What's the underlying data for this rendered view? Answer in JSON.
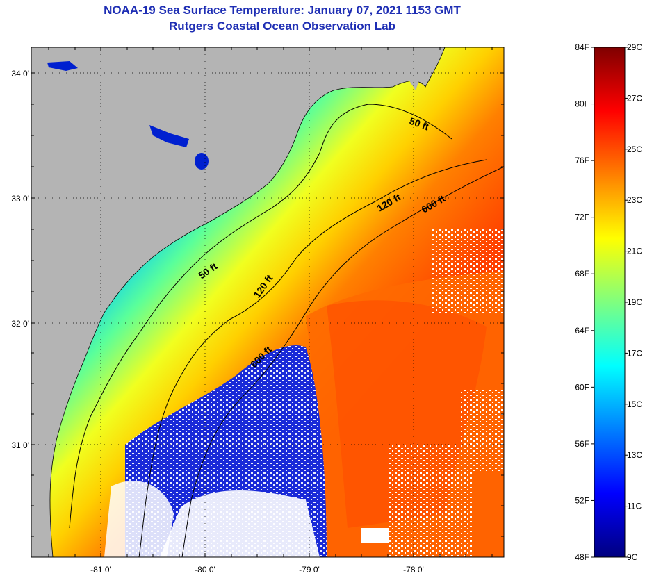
{
  "title_line1": "NOAA-19 Sea Surface Temperature:  January 07, 2021 1153 GMT",
  "title_line2": "Rutgers Coastal Ocean Observation Lab",
  "map": {
    "lon_labels": [
      "-81 0'",
      "-80 0'",
      "-79 0'",
      "-78 0'"
    ],
    "lat_labels": [
      "34 0'",
      "33 0'",
      "32 0'",
      "31 0'"
    ],
    "isobath_labels": [
      "50 ft",
      "50 ft",
      "120 ft",
      "120 ft",
      "600 ft",
      "600 ft"
    ],
    "colors": {
      "land": "#b4b4b4",
      "cloud": "#ffffff",
      "coast": "#000000"
    }
  },
  "colorbar": {
    "fahrenheit_labels": [
      "84F",
      "80F",
      "76F",
      "72F",
      "68F",
      "64F",
      "60F",
      "56F",
      "52F",
      "48F"
    ],
    "celsius_labels": [
      "29C",
      "27C",
      "25C",
      "23C",
      "21C",
      "19C",
      "17C",
      "15C",
      "13C",
      "11C",
      "9C"
    ],
    "colors": [
      "#00007f",
      "#0000ff",
      "#007fff",
      "#00ffff",
      "#7fff7f",
      "#ffff00",
      "#ff7f00",
      "#ff0000",
      "#7f0000"
    ]
  }
}
